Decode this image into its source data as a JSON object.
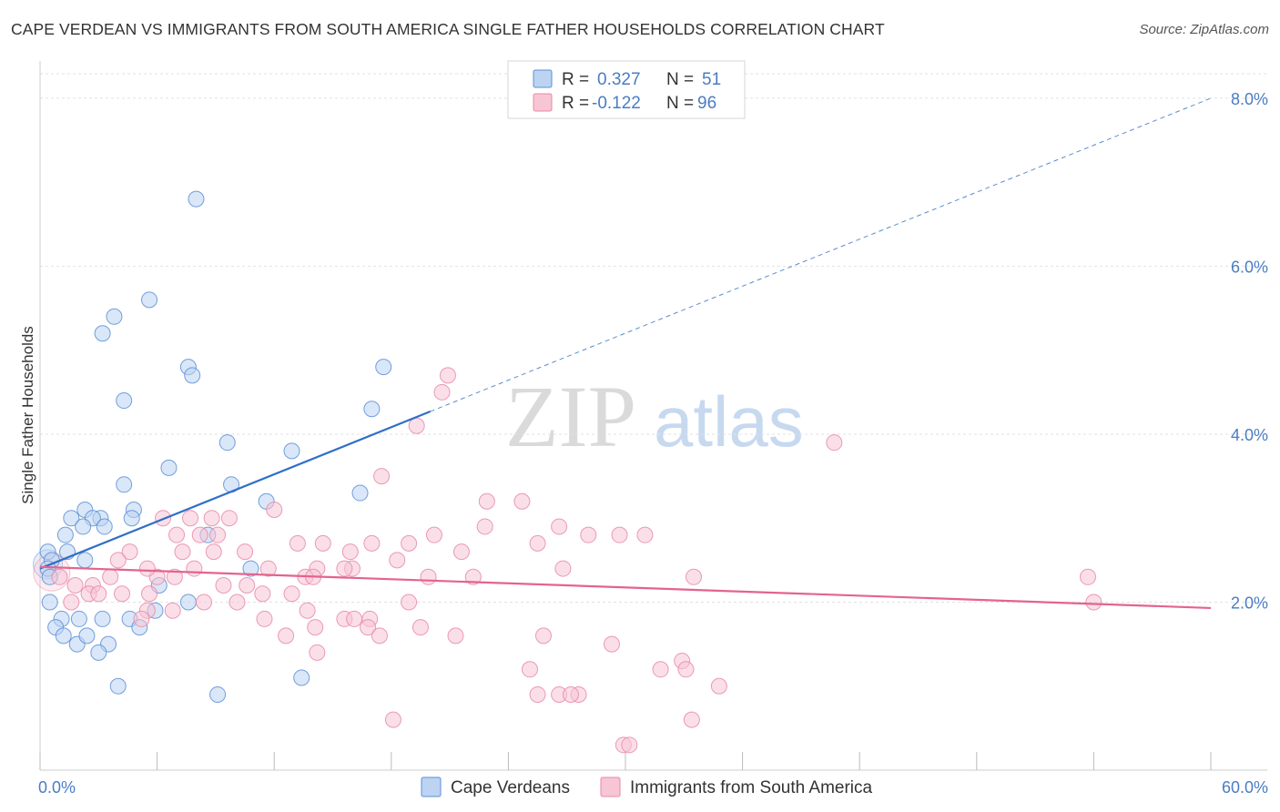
{
  "title": "CAPE VERDEAN VS IMMIGRANTS FROM SOUTH AMERICA SINGLE FATHER HOUSEHOLDS CORRELATION CHART",
  "source": "Source: ZipAtlas.com",
  "watermark": {
    "zip": "ZIP",
    "atlas": "atlas"
  },
  "chart_data": {
    "type": "scatter",
    "xlabel": "",
    "ylabel": "Single Father Households",
    "xlim": [
      0,
      60
    ],
    "ylim": [
      0,
      8.4
    ],
    "x_tick_labels": [
      {
        "value": 0,
        "label": "0.0%"
      },
      {
        "value": 60,
        "label": "60.0%"
      }
    ],
    "y_tick_labels": [
      {
        "value": 2,
        "label": "2.0%"
      },
      {
        "value": 4,
        "label": "4.0%"
      },
      {
        "value": 6,
        "label": "6.0%"
      },
      {
        "value": 8,
        "label": "8.0%"
      }
    ],
    "legend_stats": [
      {
        "r_label": "R =",
        "r_value": "0.327",
        "n_label": "N =",
        "n_value": "51"
      },
      {
        "r_label": "R =",
        "r_value": "-0.122",
        "n_label": "N =",
        "n_value": "96"
      }
    ],
    "series": [
      {
        "name": "Cape Verdeans",
        "color": "#5b8fd6",
        "fill": "#bcd3f2",
        "trend": {
          "x0": 0,
          "y0": 2.4,
          "x1": 20,
          "y1": 4.27,
          "dash_to_x": 60,
          "dash_to_y": 8.0,
          "color": "#2f6fc7"
        },
        "points": [
          [
            8.0,
            6.8
          ],
          [
            5.6,
            5.6
          ],
          [
            3.8,
            5.4
          ],
          [
            3.2,
            5.2
          ],
          [
            7.6,
            4.8
          ],
          [
            7.8,
            4.7
          ],
          [
            17.6,
            4.8
          ],
          [
            4.3,
            4.4
          ],
          [
            17.0,
            4.3
          ],
          [
            9.6,
            3.9
          ],
          [
            12.9,
            3.8
          ],
          [
            6.6,
            3.6
          ],
          [
            4.3,
            3.4
          ],
          [
            9.8,
            3.4
          ],
          [
            11.6,
            3.2
          ],
          [
            16.4,
            3.3
          ],
          [
            2.3,
            3.1
          ],
          [
            1.6,
            3.0
          ],
          [
            3.1,
            3.0
          ],
          [
            4.8,
            3.1
          ],
          [
            2.7,
            3.0
          ],
          [
            4.7,
            3.0
          ],
          [
            1.3,
            2.8
          ],
          [
            2.2,
            2.9
          ],
          [
            3.3,
            2.9
          ],
          [
            8.6,
            2.8
          ],
          [
            0.4,
            2.6
          ],
          [
            1.4,
            2.6
          ],
          [
            2.3,
            2.5
          ],
          [
            0.6,
            2.5
          ],
          [
            0.4,
            2.4
          ],
          [
            0.5,
            2.3
          ],
          [
            10.8,
            2.4
          ],
          [
            6.1,
            2.2
          ],
          [
            0.5,
            2.0
          ],
          [
            5.9,
            1.9
          ],
          [
            7.6,
            2.0
          ],
          [
            4.6,
            1.8
          ],
          [
            1.1,
            1.8
          ],
          [
            2.0,
            1.8
          ],
          [
            3.2,
            1.8
          ],
          [
            5.1,
            1.7
          ],
          [
            0.8,
            1.7
          ],
          [
            1.2,
            1.6
          ],
          [
            1.9,
            1.5
          ],
          [
            2.4,
            1.6
          ],
          [
            3.5,
            1.5
          ],
          [
            3.0,
            1.4
          ],
          [
            13.4,
            1.1
          ],
          [
            4.0,
            1.0
          ],
          [
            9.1,
            0.9
          ]
        ]
      },
      {
        "name": "Immigrants from South America",
        "color": "#e889a7",
        "fill": "#f8c5d5",
        "trend": {
          "x0": 0,
          "y0": 2.42,
          "x1": 60,
          "y1": 1.93,
          "color": "#e3648d"
        },
        "points": [
          [
            20.9,
            4.7
          ],
          [
            20.6,
            4.5
          ],
          [
            19.3,
            4.1
          ],
          [
            40.7,
            3.9
          ],
          [
            17.5,
            3.5
          ],
          [
            22.9,
            3.2
          ],
          [
            24.7,
            3.2
          ],
          [
            12.0,
            3.1
          ],
          [
            6.3,
            3.0
          ],
          [
            7.7,
            3.0
          ],
          [
            8.8,
            3.0
          ],
          [
            9.7,
            3.0
          ],
          [
            22.8,
            2.9
          ],
          [
            26.6,
            2.9
          ],
          [
            29.7,
            2.8
          ],
          [
            7.0,
            2.8
          ],
          [
            9.1,
            2.8
          ],
          [
            14.5,
            2.7
          ],
          [
            17.0,
            2.7
          ],
          [
            8.2,
            2.8
          ],
          [
            20.2,
            2.8
          ],
          [
            31.0,
            2.8
          ],
          [
            28.1,
            2.8
          ],
          [
            13.2,
            2.7
          ],
          [
            25.5,
            2.7
          ],
          [
            18.9,
            2.7
          ],
          [
            15.9,
            2.6
          ],
          [
            4.6,
            2.6
          ],
          [
            7.3,
            2.6
          ],
          [
            10.5,
            2.6
          ],
          [
            8.9,
            2.6
          ],
          [
            21.6,
            2.6
          ],
          [
            18.3,
            2.5
          ],
          [
            4.0,
            2.5
          ],
          [
            11.7,
            2.4
          ],
          [
            14.2,
            2.4
          ],
          [
            16.0,
            2.4
          ],
          [
            26.8,
            2.4
          ],
          [
            15.6,
            2.4
          ],
          [
            6.0,
            2.3
          ],
          [
            6.9,
            2.3
          ],
          [
            7.9,
            2.4
          ],
          [
            5.5,
            2.4
          ],
          [
            3.6,
            2.3
          ],
          [
            13.6,
            2.3
          ],
          [
            19.9,
            2.3
          ],
          [
            22.2,
            2.3
          ],
          [
            14.0,
            2.3
          ],
          [
            1.0,
            2.3
          ],
          [
            33.5,
            2.3
          ],
          [
            53.7,
            2.3
          ],
          [
            1.8,
            2.2
          ],
          [
            2.7,
            2.2
          ],
          [
            9.4,
            2.2
          ],
          [
            10.6,
            2.2
          ],
          [
            11.4,
            2.1
          ],
          [
            2.5,
            2.1
          ],
          [
            3.0,
            2.1
          ],
          [
            4.2,
            2.1
          ],
          [
            5.6,
            2.1
          ],
          [
            12.9,
            2.1
          ],
          [
            1.6,
            2.0
          ],
          [
            10.1,
            2.0
          ],
          [
            18.9,
            2.0
          ],
          [
            54.0,
            2.0
          ],
          [
            8.4,
            2.0
          ],
          [
            13.7,
            1.9
          ],
          [
            5.5,
            1.9
          ],
          [
            6.8,
            1.9
          ],
          [
            11.5,
            1.8
          ],
          [
            15.6,
            1.8
          ],
          [
            16.9,
            1.8
          ],
          [
            16.1,
            1.8
          ],
          [
            5.2,
            1.8
          ],
          [
            14.1,
            1.7
          ],
          [
            16.8,
            1.7
          ],
          [
            19.5,
            1.7
          ],
          [
            12.6,
            1.6
          ],
          [
            17.4,
            1.6
          ],
          [
            21.3,
            1.6
          ],
          [
            25.8,
            1.6
          ],
          [
            29.3,
            1.5
          ],
          [
            14.2,
            1.4
          ],
          [
            32.9,
            1.3
          ],
          [
            25.1,
            1.2
          ],
          [
            33.1,
            1.2
          ],
          [
            31.8,
            1.2
          ],
          [
            34.8,
            1.0
          ],
          [
            25.5,
            0.9
          ],
          [
            26.6,
            0.9
          ],
          [
            27.6,
            0.9
          ],
          [
            27.2,
            0.9
          ],
          [
            18.1,
            0.6
          ],
          [
            29.9,
            0.3
          ],
          [
            30.2,
            0.3
          ],
          [
            33.4,
            0.6
          ]
        ]
      }
    ]
  }
}
